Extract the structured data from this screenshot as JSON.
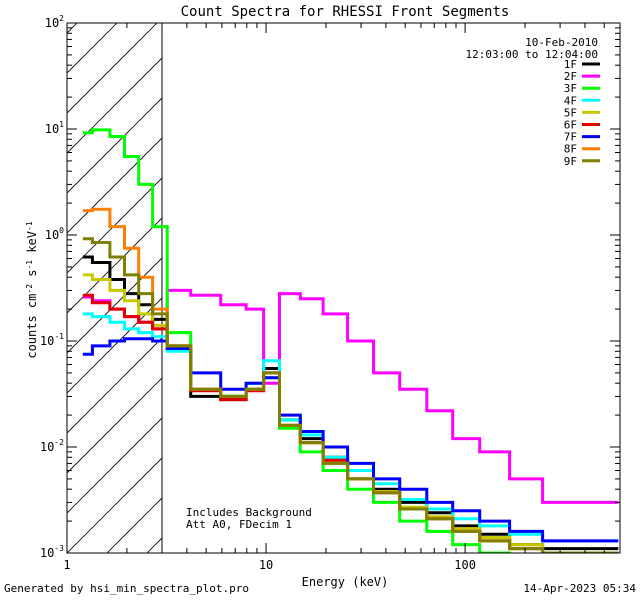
{
  "chart_data": {
    "type": "line",
    "title": "Count Spectra for RHESSI Front Segments",
    "xlabel": "Energy (keV)",
    "ylabel": "counts cm-2 s-1 keV-1",
    "xscale": "log",
    "yscale": "log",
    "xlim": [
      1,
      600
    ],
    "ylim": [
      0.001,
      100
    ],
    "x_tick_labels": [
      "1",
      "10",
      "100"
    ],
    "y_tick_labels": [
      {
        "base": "10",
        "exp": "2"
      },
      {
        "base": "10",
        "exp": "1"
      },
      {
        "base": "10",
        "exp": "0"
      },
      {
        "base": "10",
        "exp": "-1"
      },
      {
        "base": "10",
        "exp": "-2"
      },
      {
        "base": "10",
        "exp": "-3"
      }
    ],
    "date": "10-Feb-2010",
    "time_range": "12:03:00 to 12:04:00",
    "annotation_lines": [
      "Includes Background",
      "Att A0, FDecim 1"
    ],
    "hatched_region_keV": [
      1,
      3
    ],
    "series": [
      {
        "name": "1F",
        "color": "#000000",
        "values": [
          0.62,
          0.55,
          0.38,
          0.28,
          0.22,
          0.16,
          0.09,
          0.03,
          0.028,
          0.035,
          0.055,
          0.018,
          0.012,
          0.008,
          0.006,
          0.004,
          0.003,
          0.0024,
          0.0018,
          0.0015,
          0.0012,
          0.0011
        ]
      },
      {
        "name": "2F",
        "color": "#ff00ff",
        "values": [
          0.26,
          0.24,
          0.2,
          0.17,
          0.15,
          0.13,
          0.3,
          0.27,
          0.22,
          0.2,
          0.04,
          0.28,
          0.25,
          0.18,
          0.1,
          0.05,
          0.035,
          0.022,
          0.012,
          0.009,
          0.005,
          0.003
        ]
      },
      {
        "name": "3F",
        "color": "#00ff00",
        "values": [
          9.2,
          9.8,
          8.5,
          5.5,
          3.0,
          1.2,
          0.12,
          0.035,
          0.03,
          0.035,
          0.045,
          0.015,
          0.009,
          0.006,
          0.004,
          0.003,
          0.002,
          0.0016,
          0.0012,
          0.001,
          0.0009,
          0.0008
        ]
      },
      {
        "name": "4F",
        "color": "#00ffff",
        "values": [
          0.18,
          0.17,
          0.15,
          0.13,
          0.12,
          0.11,
          0.08,
          0.035,
          0.03,
          0.04,
          0.065,
          0.018,
          0.013,
          0.008,
          0.006,
          0.0045,
          0.0032,
          0.0026,
          0.0021,
          0.0018,
          0.0015,
          0.0013
        ]
      },
      {
        "name": "5F",
        "color": "#c8c800",
        "values": [
          0.42,
          0.38,
          0.3,
          0.24,
          0.18,
          0.14,
          0.09,
          0.035,
          0.03,
          0.035,
          0.05,
          0.016,
          0.011,
          0.007,
          0.005,
          0.0038,
          0.0027,
          0.0022,
          0.0017,
          0.0014,
          0.0012,
          0.001
        ]
      },
      {
        "name": "6F",
        "color": "#e00000",
        "values": [
          0.27,
          0.23,
          0.2,
          0.17,
          0.15,
          0.13,
          0.085,
          0.034,
          0.028,
          0.034,
          0.05,
          0.016,
          0.011,
          0.0075,
          0.005,
          0.0037,
          0.0026,
          0.0021,
          0.0016,
          0.0013,
          0.0011,
          0.001
        ]
      },
      {
        "name": "7F",
        "color": "#0000ff",
        "values": [
          0.075,
          0.09,
          0.1,
          0.105,
          0.105,
          0.1,
          0.085,
          0.05,
          0.035,
          0.04,
          0.045,
          0.02,
          0.014,
          0.01,
          0.007,
          0.005,
          0.004,
          0.003,
          0.0025,
          0.002,
          0.0016,
          0.0013
        ]
      },
      {
        "name": "8F",
        "color": "#ff8000",
        "values": [
          1.7,
          1.75,
          1.2,
          0.75,
          0.4,
          0.2,
          0.09,
          0.035,
          0.03,
          0.035,
          0.05,
          0.016,
          0.011,
          0.007,
          0.005,
          0.0037,
          0.0026,
          0.0021,
          0.0016,
          0.0013,
          0.0011,
          0.001
        ]
      },
      {
        "name": "9F",
        "color": "#808000",
        "values": [
          0.92,
          0.85,
          0.62,
          0.42,
          0.28,
          0.18,
          0.09,
          0.035,
          0.03,
          0.035,
          0.05,
          0.016,
          0.011,
          0.007,
          0.005,
          0.0037,
          0.0026,
          0.0021,
          0.0016,
          0.0013,
          0.0011,
          0.001
        ]
      }
    ],
    "x": [
      1.2,
      1.5,
      1.8,
      2.1,
      2.5,
      2.9,
      3.5,
      5,
      7,
      9,
      10.5,
      13,
      17,
      22,
      30,
      40,
      55,
      75,
      100,
      140,
      200,
      300
    ]
  },
  "footer": {
    "generated_by": "Generated by hsi_min_spectra_plot.pro",
    "timestamp": "14-Apr-2023 05:34"
  }
}
